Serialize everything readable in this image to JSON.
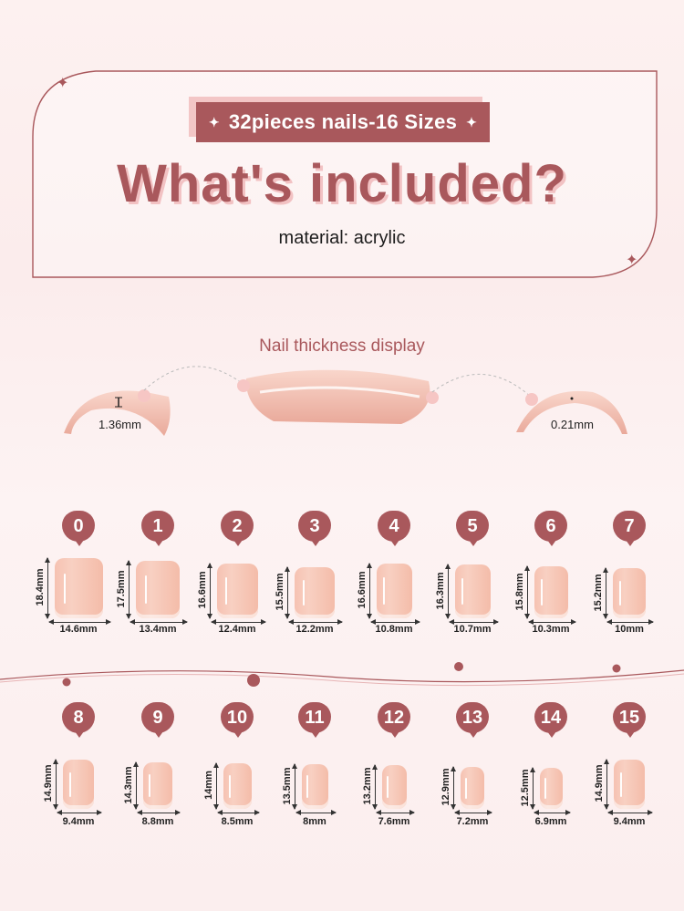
{
  "banner": {
    "text": "32pieces nails-16 Sizes",
    "spark_left": "✦",
    "spark_right": "✦"
  },
  "headline": "What's included?",
  "material": "material: acrylic",
  "thickness": {
    "title": "Nail thickness display",
    "left_value": "1.36mm",
    "right_value": "0.21mm"
  },
  "colors": {
    "accent": "#a9585c",
    "nail": "#f6c2b2",
    "accent_light": "#f3c6c6"
  },
  "sizes": [
    {
      "num": "0",
      "height": "18.4mm",
      "width": "14.6mm"
    },
    {
      "num": "1",
      "height": "17.5mm",
      "width": "13.4mm"
    },
    {
      "num": "2",
      "height": "16.6mm",
      "width": "12.4mm"
    },
    {
      "num": "3",
      "height": "15.5mm",
      "width": "12.2mm"
    },
    {
      "num": "4",
      "height": "16.6mm",
      "width": "10.8mm"
    },
    {
      "num": "5",
      "height": "16.3mm",
      "width": "10.7mm"
    },
    {
      "num": "6",
      "height": "15.8mm",
      "width": "10.3mm"
    },
    {
      "num": "7",
      "height": "15.2mm",
      "width": "10mm"
    },
    {
      "num": "8",
      "height": "14.9mm",
      "width": "9.4mm"
    },
    {
      "num": "9",
      "height": "14.3mm",
      "width": "8.8mm"
    },
    {
      "num": "10",
      "height": "14mm",
      "width": "8.5mm"
    },
    {
      "num": "11",
      "height": "13.5mm",
      "width": "8mm"
    },
    {
      "num": "12",
      "height": "13.2mm",
      "width": "7.6mm"
    },
    {
      "num": "13",
      "height": "12.9mm",
      "width": "7.2mm"
    },
    {
      "num": "14",
      "height": "12.5mm",
      "width": "6.9mm"
    },
    {
      "num": "15",
      "height": "14.9mm",
      "width": "9.4mm"
    }
  ]
}
